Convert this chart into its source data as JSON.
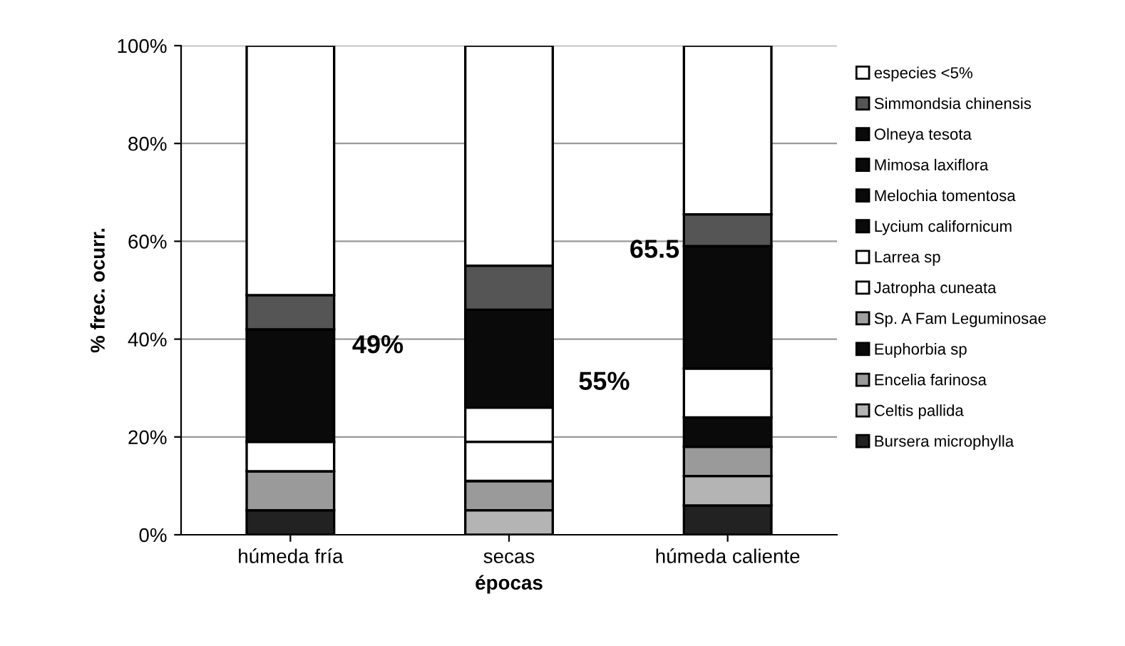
{
  "chart_data": {
    "type": "bar",
    "stacked": true,
    "xlabel": "épocas",
    "ylabel": "% frec. ocurr.",
    "categories": [
      "húmeda fría",
      "secas",
      "húmeda caliente"
    ],
    "series": [
      {
        "name": "Bursera microphylla",
        "color": "#222222",
        "values": [
          5,
          0,
          6
        ]
      },
      {
        "name": "Celtis pallida",
        "color": "#b4b4b4",
        "values": [
          0,
          5,
          6
        ]
      },
      {
        "name": "Encelia farinosa",
        "color": "#9a9a9a",
        "values": [
          8,
          6,
          6
        ]
      },
      {
        "name": "Euphorbia sp",
        "color": "#0a0a0a",
        "values": [
          0,
          0,
          6
        ]
      },
      {
        "name": "Sp. A Fam Leguminosae",
        "color": "#a0a0a0",
        "values": [
          0,
          0,
          0
        ]
      },
      {
        "name": "Jatropha cuneata",
        "color": "#ffffff",
        "values": [
          6,
          8,
          0
        ]
      },
      {
        "name": "Larrea sp",
        "color": "#ffffff",
        "values": [
          0,
          7,
          10
        ]
      },
      {
        "name": "Lycium californicum",
        "color": "#0a0a0a",
        "values": [
          23,
          20,
          25
        ]
      },
      {
        "name": "Melochia tomentosa",
        "color": "#0a0a0a",
        "values": [
          0,
          0,
          0
        ]
      },
      {
        "name": "Mimosa laxiflora",
        "color": "#0a0a0a",
        "values": [
          0,
          0,
          0
        ]
      },
      {
        "name": "Olneya tesota",
        "color": "#0a0a0a",
        "values": [
          0,
          0,
          0
        ]
      },
      {
        "name": "Simmondsia chinensis",
        "color": "#555555",
        "values": [
          7,
          9,
          6.5
        ]
      },
      {
        "name": "especies <5%",
        "color": "#ffffff",
        "values": [
          51,
          45,
          34.5
        ]
      }
    ],
    "ylim": [
      0,
      100
    ],
    "yticks": [
      {
        "value": 0,
        "label": "0%"
      },
      {
        "value": 20,
        "label": "20%"
      },
      {
        "value": 40,
        "label": "40%"
      },
      {
        "value": 60,
        "label": "60%"
      },
      {
        "value": 80,
        "label": "80%"
      },
      {
        "value": 100,
        "label": "100%"
      }
    ],
    "grid": "y",
    "legend": "right",
    "annotations": [
      "49%",
      "55%",
      "65.5"
    ]
  }
}
